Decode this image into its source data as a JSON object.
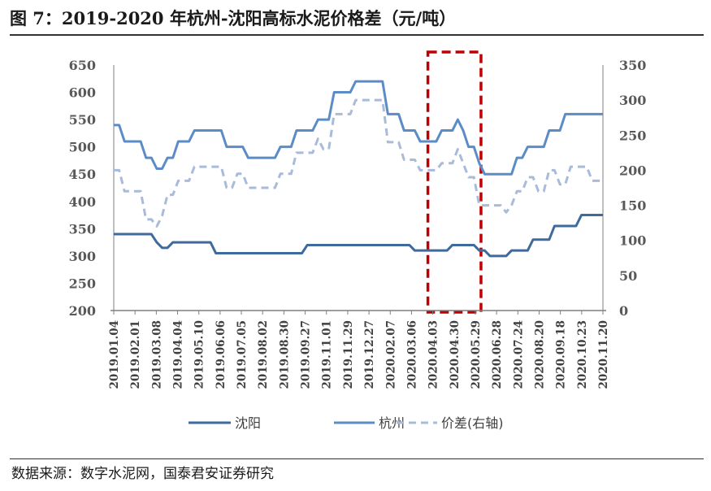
{
  "title": "图 7：2019-2020 年杭州-沈阳高标水泥价格差（元/吨）",
  "source": "数据来源：数字水泥网，国泰君安证券研究",
  "colors": {
    "shenyang": "#3e6a9e",
    "hangzhou": "#5b8cc6",
    "spread": "#a9bbd9",
    "highlight": "#c00000",
    "axis": "#7f7f7f"
  },
  "chart_data": {
    "type": "line",
    "grid": false,
    "legend_position": "bottom",
    "y_left": {
      "ticks": [
        "650",
        "600",
        "550",
        "500",
        "450",
        "400",
        "350",
        "300",
        "250",
        "200"
      ],
      "min": 200,
      "max": 650
    },
    "y_right": {
      "ticks": [
        "350",
        "300",
        "250",
        "200",
        "150",
        "100",
        "50",
        "0"
      ],
      "min": 0,
      "max": 350
    },
    "x_tick_labels": [
      "2019.01.04",
      "2019.02.01",
      "2019.03.08",
      "2019.04.04",
      "2019.05.10",
      "2019.06.06",
      "2019.07.05",
      "2019.08.02",
      "2019.08.30",
      "2019.09.27",
      "2019.11.01",
      "2019.11.29",
      "2019.12.27",
      "2020.02.07",
      "2020.03.06",
      "2020.04.03",
      "2020.04.30",
      "2020.05.29",
      "2020.06.28",
      "2020.07.24",
      "2020.08.20",
      "2020.09.18",
      "2020.10.23",
      "2020.11.20"
    ],
    "highlight_range": [
      "2020.04.03",
      "2020.05.29"
    ],
    "series": [
      {
        "name": "沈阳",
        "axis": "left",
        "values": [
          340,
          340,
          340,
          340,
          340,
          340,
          340,
          340,
          325,
          315,
          315,
          325,
          325,
          325,
          325,
          325,
          325,
          325,
          325,
          305,
          305,
          305,
          305,
          305,
          305,
          305,
          305,
          305,
          305,
          305,
          305,
          305,
          305,
          305,
          305,
          305,
          320,
          320,
          320,
          320,
          320,
          320,
          320,
          320,
          320,
          320,
          320,
          320,
          320,
          320,
          320,
          320,
          320,
          320,
          320,
          320,
          310,
          310,
          310,
          310,
          310,
          310,
          310,
          320,
          320,
          320,
          320,
          320,
          310,
          310,
          300,
          300,
          300,
          300,
          310,
          310,
          310,
          310,
          330,
          330,
          330,
          330,
          355,
          355,
          355,
          355,
          355,
          375,
          375,
          375,
          375,
          375
        ]
      },
      {
        "name": "杭州",
        "axis": "left",
        "values": [
          540,
          540,
          510,
          510,
          510,
          510,
          480,
          480,
          460,
          460,
          480,
          480,
          510,
          510,
          510,
          530,
          530,
          530,
          530,
          530,
          530,
          500,
          500,
          500,
          500,
          480,
          480,
          480,
          480,
          480,
          480,
          500,
          500,
          500,
          530,
          530,
          530,
          530,
          550,
          550,
          550,
          600,
          600,
          600,
          600,
          620,
          620,
          620,
          620,
          620,
          620,
          560,
          560,
          560,
          530,
          530,
          530,
          510,
          510,
          510,
          510,
          530,
          530,
          530,
          550,
          530,
          500,
          500,
          470,
          450,
          450,
          450,
          450,
          450,
          450,
          480,
          480,
          500,
          500,
          500,
          500,
          530,
          530,
          530,
          560,
          560,
          560,
          560,
          560,
          560,
          560,
          560
        ]
      },
      {
        "name": "价差(右轴)",
        "axis": "right",
        "values": [
          200,
          200,
          170,
          170,
          170,
          170,
          130,
          130,
          120,
          135,
          165,
          165,
          185,
          185,
          185,
          205,
          205,
          205,
          205,
          205,
          205,
          175,
          175,
          195,
          195,
          175,
          175,
          175,
          175,
          175,
          175,
          195,
          195,
          195,
          225,
          225,
          225,
          225,
          245,
          230,
          230,
          280,
          280,
          280,
          280,
          300,
          300,
          300,
          300,
          300,
          300,
          240,
          240,
          240,
          215,
          215,
          215,
          200,
          200,
          200,
          200,
          210,
          210,
          210,
          230,
          210,
          190,
          190,
          150,
          150,
          150,
          150,
          150,
          140,
          150,
          170,
          170,
          190,
          190,
          170,
          170,
          200,
          200,
          180,
          180,
          205,
          205,
          205,
          205,
          185,
          185,
          185
        ]
      }
    ]
  }
}
